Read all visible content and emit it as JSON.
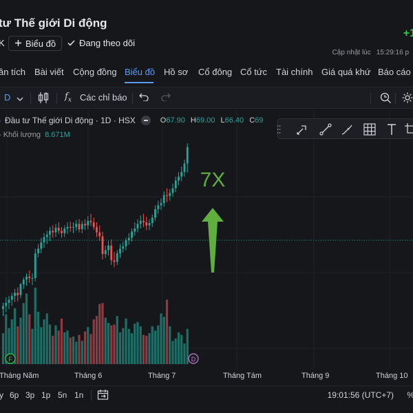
{
  "header": {
    "title": "tư Thế giới Di động",
    "ticker_fragment": "K",
    "chart_button": "Biểu đồ",
    "follow_label": "Đang theo dõi",
    "price_change": "+1",
    "updated_label": "Cập nhật lúc",
    "updated_time": "15:29:16 p"
  },
  "nav": {
    "items": [
      "ân tích",
      "Bài viết",
      "Cộng đồng",
      "Biểu đồ",
      "Hồ sơ",
      "Cổ đông",
      "Cổ tức",
      "Tài chính",
      "Giá quá khứ",
      "Báo cáo"
    ],
    "active": "Biểu đồ"
  },
  "toolbar": {
    "interval": "D",
    "indicators": "Các chỉ báo"
  },
  "legend": {
    "symbol": "Đầu tư Thế giới Di động · 1D · HSX",
    "open_label": "O",
    "open": "67.90",
    "high_label": "H",
    "high": "69.00",
    "low_label": "L",
    "low": "66.40",
    "close_label": "C",
    "close": "69",
    "volume_prefix": "- Khối lượng",
    "volume": "8.671M"
  },
  "annotation": {
    "text": "7X",
    "color": "#5fae3e"
  },
  "markers": [
    "F",
    "D"
  ],
  "time_axis": [
    "Tháng Năm",
    "Tháng 6",
    "Tháng 7",
    "Tháng Tám",
    "Tháng 9",
    "Tháng 10"
  ],
  "ranges": [
    "y",
    "6p",
    "3p",
    "1p",
    "5n",
    "1n"
  ],
  "clock": "19:01:56 (UTC+7)",
  "pct": "%",
  "colors": {
    "up": "#26a69a",
    "down": "#ef5350",
    "accent": "#5b9cf6",
    "background": "#16171b"
  },
  "chart_data": {
    "type": "candlestick",
    "x": [
      "2024-05-02",
      "2024-05-03",
      "2024-05-06",
      "2024-05-07",
      "2024-05-08",
      "2024-05-09",
      "2024-05-10",
      "2024-05-13",
      "2024-05-14",
      "2024-05-15",
      "2024-05-16",
      "2024-05-17",
      "2024-05-20",
      "2024-05-21",
      "2024-05-22",
      "2024-05-23",
      "2024-05-24",
      "2024-05-27",
      "2024-05-28",
      "2024-05-29",
      "2024-05-30",
      "2024-05-31",
      "2024-06-03",
      "2024-06-04",
      "2024-06-05",
      "2024-06-06",
      "2024-06-07",
      "2024-06-10",
      "2024-06-11",
      "2024-06-12",
      "2024-06-13",
      "2024-06-14",
      "2024-06-17",
      "2024-06-18",
      "2024-06-19",
      "2024-06-20",
      "2024-06-21",
      "2024-06-24",
      "2024-06-25",
      "2024-06-26",
      "2024-06-27",
      "2024-06-28",
      "2024-07-01",
      "2024-07-02",
      "2024-07-03",
      "2024-07-04",
      "2024-07-05",
      "2024-07-08",
      "2024-07-09",
      "2024-07-10",
      "2024-07-11",
      "2024-07-12",
      "2024-07-15",
      "2024-07-16",
      "2024-07-17",
      "2024-07-18",
      "2024-07-19",
      "2024-07-22",
      "2024-07-23",
      "2024-07-24",
      "2024-07-25",
      "2024-07-26",
      "2024-07-29",
      "2024-07-30"
    ],
    "series": [
      {
        "open": [
          47.2,
          47.6,
          48.0,
          48.4,
          48.9,
          49.3,
          49.0,
          50.4,
          51.0,
          51.4,
          51.2,
          51.2,
          54.4,
          55.0,
          55.8,
          56.5,
          56.8,
          57.3,
          57.1,
          57.7,
          57.3,
          57.0,
          57.6,
          57.8,
          57.7,
          57.8,
          58.2,
          57.5,
          58.2,
          58.0,
          58.6,
          58.4,
          57.8,
          57.1,
          56.6,
          54.3,
          54.8,
          55.4,
          53.5,
          53.3,
          54.4,
          55.0,
          55.3,
          56.1,
          56.4,
          57.2,
          57.6,
          58.2,
          58.6,
          58.4,
          58.0,
          58.3,
          59.0,
          60.1,
          60.6,
          60.9,
          61.9,
          61.8,
          62.2,
          62.8,
          63.8,
          64.3,
          64.9,
          66.0
        ],
        "high": [
          48.0,
          48.7,
          48.9,
          49.3,
          49.8,
          50.0,
          50.6,
          51.3,
          51.8,
          52.2,
          51.8,
          55.0,
          55.6,
          56.4,
          57.0,
          57.3,
          57.8,
          58.0,
          58.2,
          58.4,
          57.8,
          58.0,
          58.4,
          58.5,
          58.4,
          58.7,
          58.8,
          58.6,
          58.8,
          59.2,
          59.5,
          59.0,
          58.4,
          58.0,
          57.2,
          55.4,
          56.0,
          56.2,
          54.6,
          54.8,
          55.6,
          55.9,
          56.4,
          57.0,
          57.6,
          58.4,
          58.8,
          59.3,
          59.5,
          59.1,
          58.8,
          59.4,
          60.6,
          61.2,
          61.5,
          62.4,
          62.8,
          62.7,
          63.4,
          64.3,
          64.9,
          65.6,
          66.5,
          68.6
        ],
        "low": [
          46.3,
          46.8,
          47.2,
          47.6,
          48.1,
          48.2,
          48.6,
          49.8,
          50.2,
          50.6,
          50.3,
          50.8,
          53.9,
          54.4,
          55.1,
          55.6,
          56.0,
          56.4,
          56.5,
          56.9,
          56.4,
          56.5,
          56.9,
          57.2,
          57.0,
          57.3,
          57.1,
          57.0,
          57.4,
          57.5,
          57.9,
          57.4,
          56.5,
          56.0,
          53.6,
          53.8,
          54.1,
          52.9,
          52.6,
          52.9,
          53.8,
          54.5,
          54.8,
          55.5,
          55.9,
          56.7,
          57.1,
          57.6,
          57.8,
          57.4,
          57.4,
          57.8,
          58.6,
          59.5,
          60.0,
          60.4,
          61.0,
          61.2,
          61.7,
          62.3,
          63.2,
          63.7,
          64.3,
          64.8
        ],
        "close": [
          47.6,
          48.0,
          48.4,
          48.9,
          49.3,
          49.0,
          50.4,
          51.0,
          51.4,
          51.2,
          51.2,
          54.4,
          55.0,
          55.8,
          56.5,
          56.8,
          57.3,
          57.1,
          57.7,
          57.3,
          57.0,
          57.6,
          57.8,
          57.7,
          57.8,
          58.2,
          57.5,
          58.2,
          58.0,
          58.6,
          58.4,
          57.8,
          57.1,
          56.6,
          54.3,
          54.8,
          55.4,
          53.5,
          53.3,
          54.4,
          55.0,
          55.3,
          56.1,
          56.4,
          57.2,
          57.6,
          58.2,
          58.6,
          58.4,
          58.0,
          58.3,
          59.0,
          60.1,
          60.6,
          60.9,
          61.9,
          61.8,
          62.2,
          62.8,
          63.8,
          64.3,
          64.9,
          66.0,
          68.1
        ],
        "volume": [
          3.6,
          5.8,
          4.2,
          5.2,
          6.5,
          4.4,
          5.4,
          7.1,
          8.2,
          5.8,
          4.1,
          8.9,
          6.1,
          4.3,
          5.2,
          5.9,
          4.6,
          3.3,
          4.5,
          3.9,
          5.3,
          3.7,
          3.9,
          3.1,
          3.2,
          2.6,
          3.4,
          2.7,
          3.8,
          4.3,
          3.5,
          5.2,
          5.6,
          7.0,
          7.1,
          5.4,
          4.8,
          4.5,
          4.6,
          5.6,
          3.7,
          4.2,
          5.3,
          4.1,
          3.6,
          4.7,
          4.9,
          4.4,
          3.4,
          3.3,
          3.6,
          4.4,
          3.9,
          4.5,
          5.9,
          5.5,
          7.5,
          4.4,
          2.7,
          3.0,
          3.7,
          3.4,
          2.4,
          4.1
        ]
      }
    ],
    "ylim": [
      40,
      72
    ],
    "volume_lim": [
      0,
      16
    ]
  }
}
